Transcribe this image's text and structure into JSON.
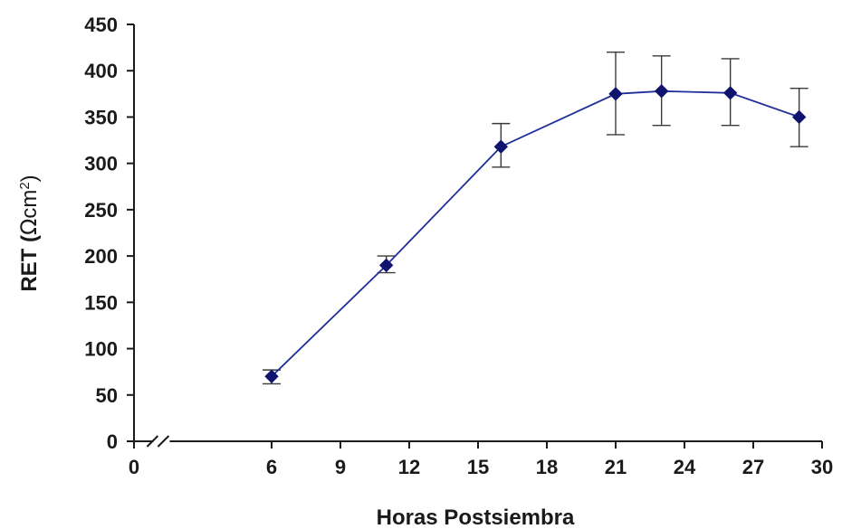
{
  "chart_data": {
    "type": "line",
    "xlabel": "Horas Postsiembra",
    "ylabel_main": "RET (",
    "ylabel_omega": "Ω",
    "ylabel_unit": "cm",
    "ylabel_sup": "2",
    "ylabel_close": ")",
    "xlim": [
      0,
      30
    ],
    "ylim": [
      0,
      450
    ],
    "axis_break": true,
    "x_ticks": [
      0,
      6,
      9,
      12,
      15,
      18,
      21,
      24,
      27,
      30
    ],
    "y_ticks": [
      0,
      50,
      100,
      150,
      200,
      250,
      300,
      350,
      400,
      450
    ],
    "grid": false,
    "legend": "none",
    "colors": {
      "line": "#1f2f9a",
      "marker": "#10146e",
      "error_bar": "#3a3a3a"
    },
    "series": [
      {
        "x": [
          6,
          11,
          16,
          21,
          23,
          26,
          29
        ],
        "y": [
          70,
          190,
          318,
          375,
          378,
          376,
          350
        ],
        "err_low": [
          62,
          182,
          296,
          331,
          341,
          341,
          318
        ],
        "err_high": [
          77,
          200,
          343,
          420,
          416,
          413,
          381
        ]
      }
    ]
  }
}
